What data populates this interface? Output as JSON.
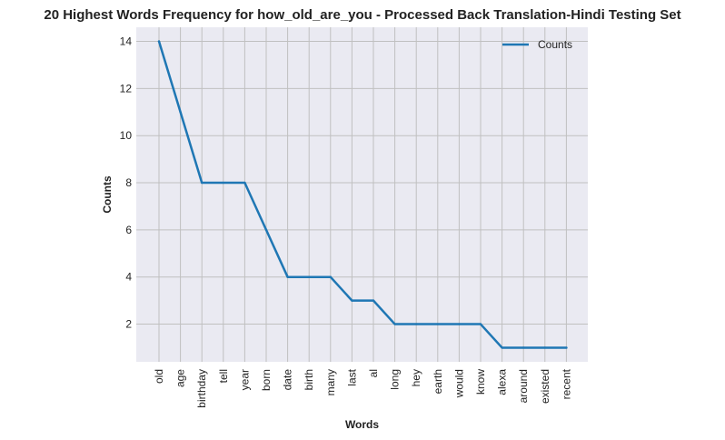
{
  "chart_data": {
    "type": "line",
    "title": "20 Highest Words Frequency for how_old_are_you - Processed Back Translation-Hindi Testing Set",
    "xlabel": "Words",
    "ylabel": "Counts",
    "categories": [
      "old",
      "age",
      "birthday",
      "tell",
      "year",
      "born",
      "date",
      "birth",
      "many",
      "last",
      "al",
      "long",
      "hey",
      "earth",
      "would",
      "know",
      "alexa",
      "around",
      "existed",
      "recent"
    ],
    "series": [
      {
        "name": "Counts",
        "values": [
          14,
          11,
          8,
          8,
          8,
          6,
          4,
          4,
          4,
          3,
          3,
          2,
          2,
          2,
          2,
          2,
          1,
          1,
          1,
          1
        ],
        "color": "#1f77b4"
      }
    ],
    "ylim": [
      0.4,
      14.6
    ],
    "yticks": [
      2,
      4,
      6,
      8,
      10,
      12,
      14
    ],
    "grid": true,
    "legend_position": "top-right",
    "background": "#eaeaf2",
    "grid_color": "#c0c0c0"
  }
}
